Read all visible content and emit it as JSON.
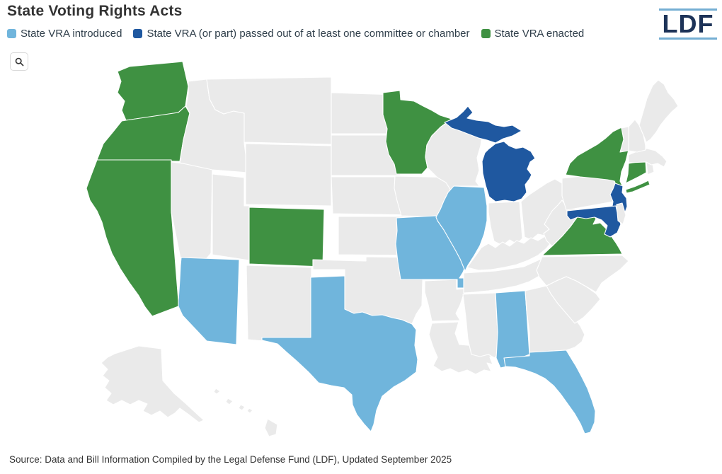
{
  "title": "State Voting Rights Acts",
  "logo": {
    "text": "LDF",
    "navy": "#1d3358",
    "line_color": "#74aed3"
  },
  "controls": {
    "search_icon": "magnifier"
  },
  "legend": {
    "items": [
      {
        "status": "introduced",
        "label": "State VRA introduced",
        "color": "#70b5dc"
      },
      {
        "status": "passed",
        "label": "State VRA (or part) passed out of at least one committee or chamber",
        "color": "#1f58a0"
      },
      {
        "status": "enacted",
        "label": "State VRA enacted",
        "color": "#3f9142"
      }
    ]
  },
  "footer": {
    "source": "Source: Data and Bill Information Compiled by the Legal Defense Fund (LDF), Updated September 2025"
  },
  "chart_data": {
    "type": "heatmap",
    "subtype": "us-state-choropleth",
    "title": "State Voting Rights Acts",
    "legend_position": "top",
    "status_colors": {
      "introduced": "#70b5dc",
      "passed": "#1f58a0",
      "enacted": "#3f9142",
      "none": "#eaeaea"
    },
    "border_color": "#ffffff",
    "states": [
      {
        "id": "WA",
        "name": "Washington",
        "status": "enacted"
      },
      {
        "id": "OR",
        "name": "Oregon",
        "status": "enacted"
      },
      {
        "id": "CA",
        "name": "California",
        "status": "enacted"
      },
      {
        "id": "NV",
        "name": "Nevada",
        "status": "none"
      },
      {
        "id": "ID",
        "name": "Idaho",
        "status": "none"
      },
      {
        "id": "MT",
        "name": "Montana",
        "status": "none"
      },
      {
        "id": "WY",
        "name": "Wyoming",
        "status": "none"
      },
      {
        "id": "UT",
        "name": "Utah",
        "status": "none"
      },
      {
        "id": "CO",
        "name": "Colorado",
        "status": "enacted"
      },
      {
        "id": "AZ",
        "name": "Arizona",
        "status": "introduced"
      },
      {
        "id": "NM",
        "name": "New Mexico",
        "status": "none"
      },
      {
        "id": "ND",
        "name": "North Dakota",
        "status": "none"
      },
      {
        "id": "SD",
        "name": "South Dakota",
        "status": "none"
      },
      {
        "id": "NE",
        "name": "Nebraska",
        "status": "none"
      },
      {
        "id": "KS",
        "name": "Kansas",
        "status": "none"
      },
      {
        "id": "OK",
        "name": "Oklahoma",
        "status": "none"
      },
      {
        "id": "TX",
        "name": "Texas",
        "status": "introduced"
      },
      {
        "id": "MN",
        "name": "Minnesota",
        "status": "enacted"
      },
      {
        "id": "IA",
        "name": "Iowa",
        "status": "none"
      },
      {
        "id": "MO",
        "name": "Missouri",
        "status": "introduced"
      },
      {
        "id": "AR",
        "name": "Arkansas",
        "status": "none"
      },
      {
        "id": "LA",
        "name": "Louisiana",
        "status": "none"
      },
      {
        "id": "WI",
        "name": "Wisconsin",
        "status": "none"
      },
      {
        "id": "IL",
        "name": "Illinois",
        "status": "introduced"
      },
      {
        "id": "MI",
        "name": "Michigan",
        "status": "passed"
      },
      {
        "id": "IN",
        "name": "Indiana",
        "status": "none"
      },
      {
        "id": "OH",
        "name": "Ohio",
        "status": "none"
      },
      {
        "id": "KY",
        "name": "Kentucky",
        "status": "none"
      },
      {
        "id": "TN",
        "name": "Tennessee",
        "status": "none"
      },
      {
        "id": "MS",
        "name": "Mississippi",
        "status": "none"
      },
      {
        "id": "AL",
        "name": "Alabama",
        "status": "introduced"
      },
      {
        "id": "GA",
        "name": "Georgia",
        "status": "none"
      },
      {
        "id": "FL",
        "name": "Florida",
        "status": "introduced"
      },
      {
        "id": "SC",
        "name": "South Carolina",
        "status": "none"
      },
      {
        "id": "NC",
        "name": "North Carolina",
        "status": "none"
      },
      {
        "id": "VA",
        "name": "Virginia",
        "status": "enacted"
      },
      {
        "id": "WV",
        "name": "West Virginia",
        "status": "none"
      },
      {
        "id": "PA",
        "name": "Pennsylvania",
        "status": "none"
      },
      {
        "id": "NY",
        "name": "New York",
        "status": "enacted"
      },
      {
        "id": "NJ",
        "name": "New Jersey",
        "status": "passed"
      },
      {
        "id": "MD",
        "name": "Maryland",
        "status": "passed"
      },
      {
        "id": "DE",
        "name": "Delaware",
        "status": "none"
      },
      {
        "id": "CT",
        "name": "Connecticut",
        "status": "enacted"
      },
      {
        "id": "RI",
        "name": "Rhode Island",
        "status": "none"
      },
      {
        "id": "MA",
        "name": "Massachusetts",
        "status": "none"
      },
      {
        "id": "VT",
        "name": "Vermont",
        "status": "none"
      },
      {
        "id": "NH",
        "name": "New Hampshire",
        "status": "none"
      },
      {
        "id": "ME",
        "name": "Maine",
        "status": "none"
      },
      {
        "id": "AK",
        "name": "Alaska",
        "status": "none"
      },
      {
        "id": "HI",
        "name": "Hawaii",
        "status": "none"
      }
    ]
  }
}
